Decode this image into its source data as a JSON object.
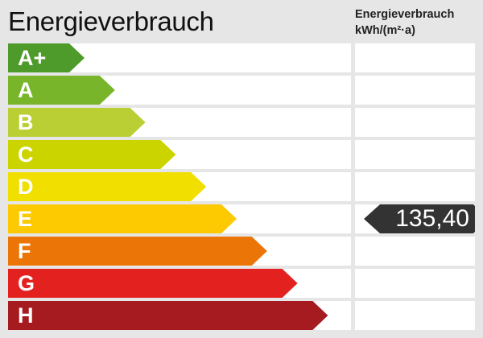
{
  "header": {
    "title": "Energieverbrauch",
    "unit_line1": "Energieverbrauch",
    "unit_line2": "kWh/(m²·a)"
  },
  "chart_data": {
    "type": "energy-rating-scale",
    "title": "Energieverbrauch",
    "ylabel": "Energieverbrauch kWh/(m²·a)",
    "classes": [
      {
        "label": "A+",
        "color": "#4e9a2a"
      },
      {
        "label": "A",
        "color": "#78b52b"
      },
      {
        "label": "B",
        "color": "#bacf33"
      },
      {
        "label": "C",
        "color": "#ccd400"
      },
      {
        "label": "D",
        "color": "#f1df00"
      },
      {
        "label": "E",
        "color": "#fdc900"
      },
      {
        "label": "F",
        "color": "#eb7607"
      },
      {
        "label": "G",
        "color": "#e3221f"
      },
      {
        "label": "H",
        "color": "#a51b20"
      }
    ],
    "value": "135,40",
    "value_class": "E",
    "marker_color": "#333333"
  }
}
